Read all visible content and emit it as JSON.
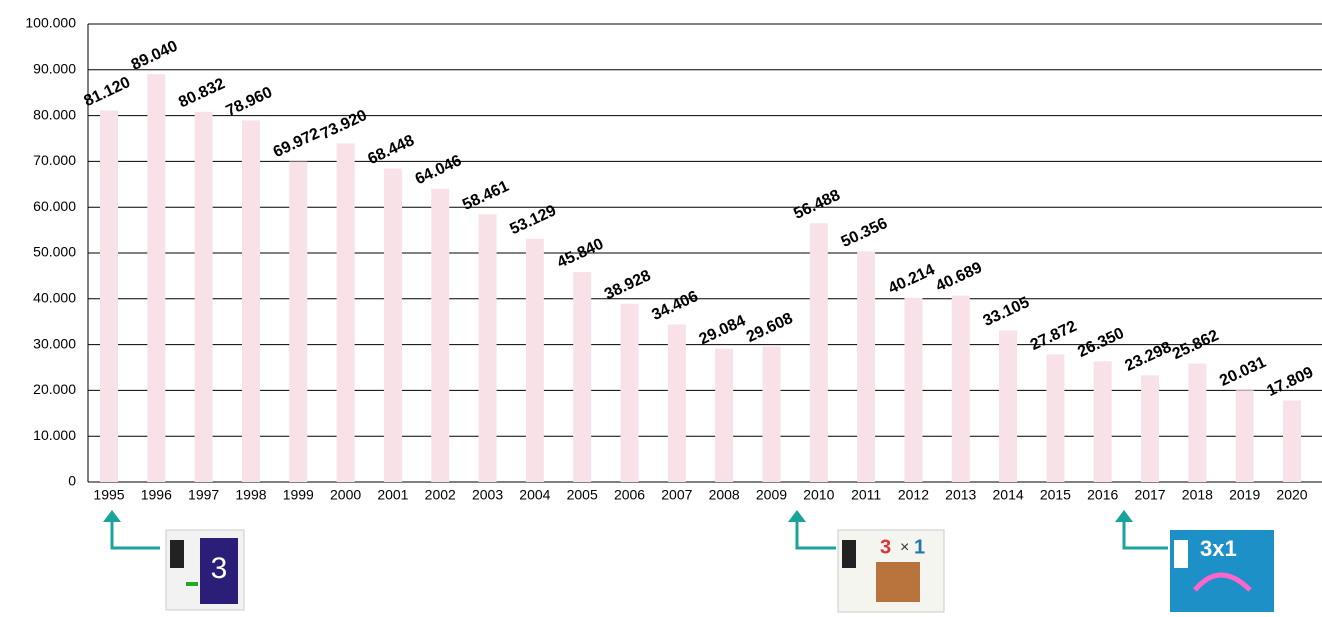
{
  "chart_data": {
    "type": "bar",
    "categories": [
      "1995",
      "1996",
      "1997",
      "1998",
      "1999",
      "2000",
      "2001",
      "2002",
      "2003",
      "2004",
      "2005",
      "2006",
      "2007",
      "2008",
      "2009",
      "2010",
      "2011",
      "2012",
      "2013",
      "2014",
      "2015",
      "2016",
      "2017",
      "2018",
      "2019",
      "2020"
    ],
    "values": [
      81120,
      89040,
      80832,
      78960,
      69972,
      73920,
      68448,
      64046,
      58461,
      53129,
      45840,
      38928,
      34406,
      29084,
      29608,
      56488,
      50356,
      40214,
      40689,
      33105,
      27872,
      26350,
      23298,
      25862,
      20031,
      17809
    ],
    "value_labels": [
      "81.120",
      "89.040",
      "80.832",
      "78.960",
      "69.972",
      "73.920",
      "68.448",
      "64.046",
      "58.461",
      "53.129",
      "45.840",
      "38.928",
      "34.406",
      "29.084",
      "29.608",
      "56.488",
      "50.356",
      "40.214",
      "40.689",
      "33.105",
      "27.872",
      "26.350",
      "23.298",
      "25.862",
      "20.031",
      "17.809"
    ],
    "color": "#f9e2e7",
    "ylim": [
      0,
      100000
    ],
    "yticks": [
      0,
      {
        "value": 10000,
        "label": "10.000"
      },
      {
        "value": 20000,
        "label": "20.000"
      },
      {
        "value": 30000,
        "label": "30.000"
      },
      {
        "value": 40000,
        "label": "40.000"
      },
      {
        "value": 50000,
        "label": "50.000"
      },
      {
        "value": 60000,
        "label": "60.000"
      },
      {
        "value": 70000,
        "label": "70.000"
      },
      {
        "value": 80000,
        "label": "80.000"
      },
      {
        "value": 90000,
        "label": "90.000"
      },
      {
        "value": 100000,
        "label": "100.000"
      }
    ],
    "grid": true
  }
}
